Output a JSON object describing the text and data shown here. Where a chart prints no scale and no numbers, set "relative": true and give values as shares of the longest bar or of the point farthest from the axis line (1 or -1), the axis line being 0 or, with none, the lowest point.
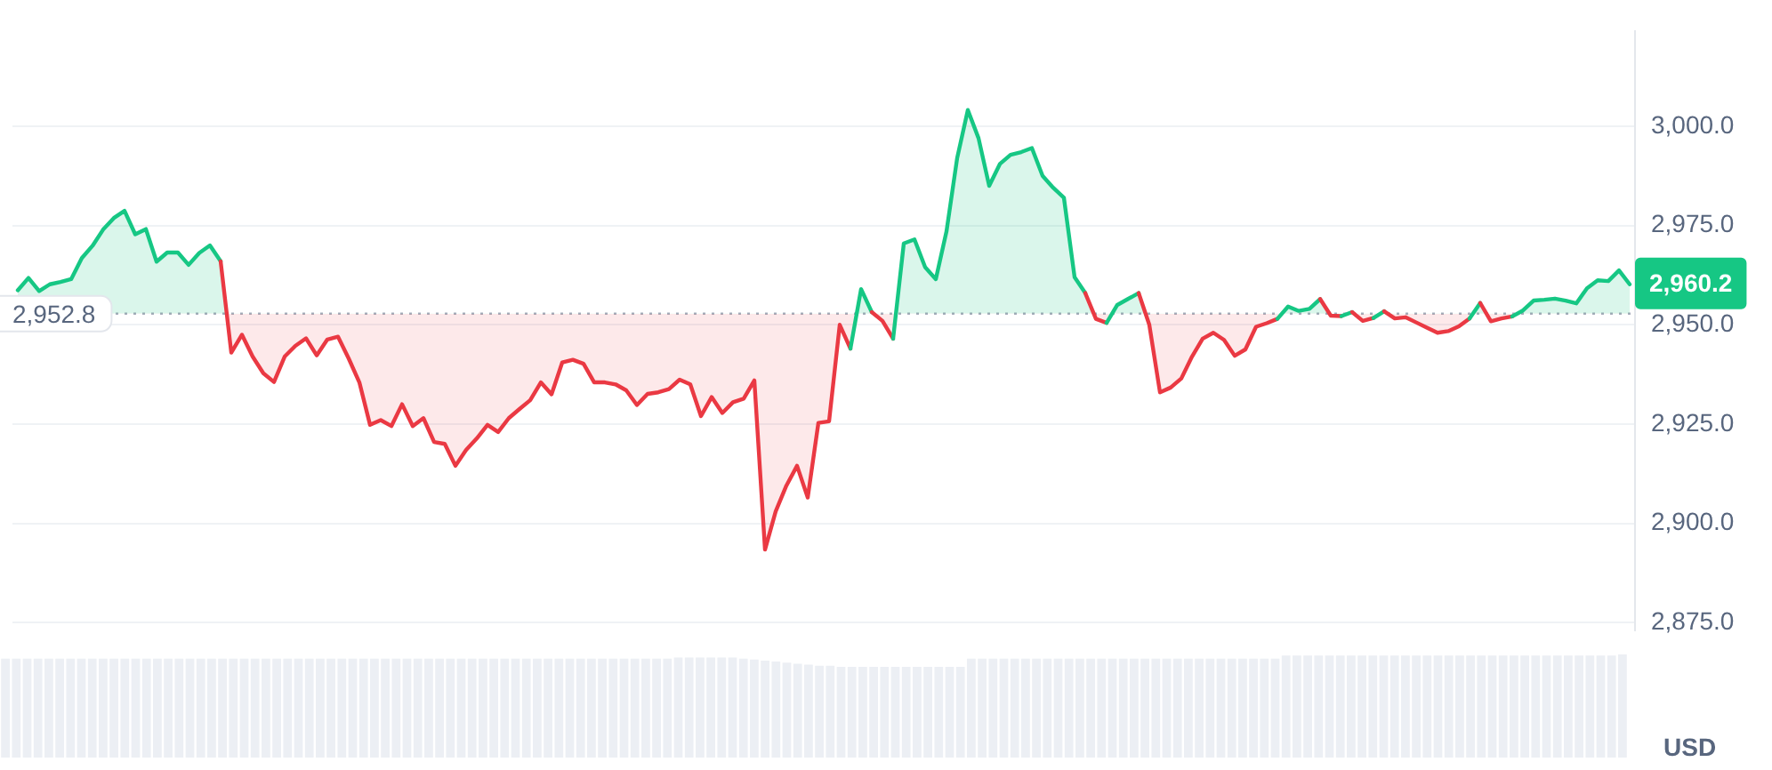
{
  "chart_data": [
    {
      "type": "area",
      "categories": [
        null,
        null,
        null,
        null,
        null,
        null,
        null,
        null,
        null,
        null,
        null,
        null,
        null,
        null,
        null,
        null,
        null,
        null,
        null,
        null,
        null,
        null,
        null,
        null,
        null,
        null,
        null,
        null,
        null,
        null,
        null,
        null,
        null,
        null,
        null,
        null,
        null,
        null,
        null,
        null,
        null,
        null,
        null,
        null,
        null,
        null,
        null,
        null,
        null,
        null,
        null,
        null,
        null,
        null,
        null,
        null,
        null,
        null,
        null,
        null,
        null,
        null,
        null,
        null,
        null,
        null,
        null,
        null,
        null,
        null,
        null,
        null,
        null,
        null,
        null,
        null,
        null,
        null,
        null,
        null,
        null,
        null,
        null,
        null,
        null,
        null,
        null,
        null,
        null,
        null,
        null,
        null,
        null,
        null,
        null,
        null,
        null,
        null,
        null,
        null,
        null,
        null,
        null,
        null,
        null,
        null,
        null,
        null,
        null,
        null,
        null,
        null,
        null,
        null,
        null,
        null,
        null,
        null,
        null,
        null,
        null,
        null,
        null,
        null,
        null,
        null,
        null,
        null,
        null,
        null,
        null,
        null,
        null,
        null,
        null,
        null,
        null,
        null,
        null,
        null,
        null,
        null,
        null,
        null,
        null,
        null,
        null,
        null,
        null,
        null,
        null,
        null
      ],
      "values": [
        2958.7,
        2961.8,
        2958.5,
        2960.2,
        2960.8,
        2961.5,
        2966.8,
        2969.9,
        2974.0,
        2976.9,
        2978.7,
        2972.8,
        2974.1,
        2965.9,
        2968.2,
        2968.2,
        2965.1,
        2968.1,
        2970.0,
        2966.0,
        2943.0,
        2947.5,
        2942.0,
        2937.8,
        2935.6,
        2942.0,
        2944.7,
        2946.6,
        2942.3,
        2946.3,
        2947.0,
        2941.5,
        2935.5,
        2924.8,
        2926.0,
        2924.5,
        2930.0,
        2924.5,
        2926.5,
        2920.5,
        2920.0,
        2914.5,
        2918.5,
        2921.4,
        2924.8,
        2923.0,
        2926.5,
        2928.8,
        2931.0,
        2935.5,
        2932.5,
        2940.5,
        2941.2,
        2940.2,
        2935.5,
        2935.5,
        2935.0,
        2933.5,
        2929.8,
        2932.6,
        2933.0,
        2933.8,
        2936.2,
        2935.0,
        2927.0,
        2931.8,
        2927.8,
        2930.5,
        2931.4,
        2936.0,
        2893.4,
        2903.0,
        2909.5,
        2914.5,
        2906.5,
        2925.3,
        2925.7,
        2950.0,
        2944.0,
        2959.0,
        2953.2,
        2951.0,
        2946.5,
        2970.5,
        2971.5,
        2964.5,
        2961.5,
        2973.5,
        2992.0,
        3004.1,
        2997.0,
        2985.0,
        2990.5,
        2992.8,
        2993.5,
        2994.5,
        2987.5,
        2984.5,
        2982.0,
        2962.0,
        2958.0,
        2951.5,
        2950.5,
        2955.0,
        2956.5,
        2958.0,
        2950.0,
        2933.0,
        2934.2,
        2936.5,
        2942.0,
        2946.5,
        2948.0,
        2946.2,
        2942.2,
        2943.8,
        2949.5,
        2950.4,
        2951.5,
        2954.6,
        2953.5,
        2954.0,
        2956.5,
        2952.3,
        2952.2,
        2953.2,
        2951.0,
        2951.7,
        2953.4,
        2951.6,
        2951.9,
        2950.6,
        2949.3,
        2948.0,
        2948.4,
        2949.6,
        2951.6,
        2955.5,
        2950.9,
        2951.6,
        2952.1,
        2953.6,
        2956.1,
        2956.3,
        2956.6,
        2956.1,
        2955.4,
        2959.2,
        2961.2,
        2961.0,
        2963.7,
        2960.2
      ],
      "colors": [
        "#16c784",
        "#16c784",
        "#16c784",
        "#16c784",
        "#16c784",
        "#16c784",
        "#16c784",
        "#16c784",
        "#16c784",
        "#16c784",
        "#16c784",
        "#16c784",
        "#16c784",
        "#16c784",
        "#16c784",
        "#16c784",
        "#16c784",
        "#16c784",
        "#16c784",
        "#16c784",
        "#ea3943",
        "#ea3943",
        "#ea3943",
        "#ea3943",
        "#ea3943",
        "#ea3943",
        "#ea3943",
        "#ea3943",
        "#ea3943",
        "#ea3943",
        "#ea3943",
        "#ea3943",
        "#ea3943",
        "#ea3943",
        "#ea3943",
        "#ea3943",
        "#ea3943",
        "#ea3943",
        "#ea3943",
        "#ea3943",
        "#ea3943",
        "#ea3943",
        "#ea3943",
        "#ea3943",
        "#ea3943",
        "#ea3943",
        "#ea3943",
        "#ea3943",
        "#ea3943",
        "#ea3943",
        "#ea3943",
        "#ea3943",
        "#ea3943",
        "#ea3943",
        "#ea3943",
        "#ea3943",
        "#ea3943",
        "#ea3943",
        "#ea3943",
        "#ea3943",
        "#ea3943",
        "#ea3943",
        "#ea3943",
        "#ea3943",
        "#ea3943",
        "#ea3943",
        "#ea3943",
        "#ea3943",
        "#ea3943",
        "#ea3943",
        "#ea3943",
        "#ea3943",
        "#ea3943",
        "#ea3943",
        "#ea3943",
        "#ea3943",
        "#ea3943",
        "#ea3943",
        "#ea3943",
        "#16c784",
        "#16c784",
        "#ea3943",
        "#ea3943",
        "#16c784",
        "#16c784",
        "#16c784",
        "#16c784",
        "#16c784",
        "#16c784",
        "#16c784",
        "#16c784",
        "#16c784",
        "#16c784",
        "#16c784",
        "#16c784",
        "#16c784",
        "#16c784",
        "#16c784",
        "#16c784",
        "#16c784",
        "#16c784",
        "#ea3943",
        "#ea3943",
        "#16c784",
        "#16c784",
        "#16c784",
        "#ea3943",
        "#ea3943",
        "#ea3943",
        "#ea3943",
        "#ea3943",
        "#ea3943",
        "#ea3943",
        "#ea3943",
        "#ea3943",
        "#ea3943",
        "#ea3943",
        "#ea3943",
        "#ea3943",
        "#16c784",
        "#16c784",
        "#16c784",
        "#16c784",
        "#ea3943",
        "#ea3943",
        "#16c784",
        "#ea3943",
        "#ea3943",
        "#16c784",
        "#ea3943",
        "#ea3943",
        "#ea3943",
        "#ea3943",
        "#ea3943",
        "#ea3943",
        "#ea3943",
        "#ea3943",
        "#16c784",
        "#ea3943",
        "#ea3943",
        "#ea3943",
        "#16c784",
        "#16c784",
        "#16c784",
        "#16c784",
        "#16c784",
        "#16c784",
        "#16c784",
        "#16c784",
        "#16c784",
        "#16c784",
        "#16c784"
      ],
      "ylabel": "USD",
      "ylim": [
        2873,
        3024
      ],
      "yticks": [
        {
          "value": 2875,
          "label": "2,875.0"
        },
        {
          "value": 2900,
          "label": "2,900.0"
        },
        {
          "value": 2925,
          "label": "2,925.0"
        },
        {
          "value": 2950,
          "label": "2,950.0"
        },
        {
          "value": 2975,
          "label": "2,975.0"
        },
        {
          "value": 3000,
          "label": "3,000.0"
        }
      ],
      "grid": "y",
      "tick_labels": "y",
      "ref_lines": [
        {
          "axis": "y",
          "value": 2952.8,
          "label": "2,952.8",
          "color": "#a7adbc",
          "line_style": "dotted"
        }
      ],
      "annotations": [
        "2,960.2"
      ]
    },
    {
      "type": "bar",
      "relative": true,
      "color": "#eceff4",
      "categories": [
        null,
        null,
        null,
        null,
        null,
        null,
        null,
        null,
        null,
        null,
        null,
        null,
        null,
        null,
        null,
        null,
        null,
        null,
        null,
        null,
        null,
        null,
        null,
        null,
        null,
        null,
        null,
        null,
        null,
        null,
        null,
        null,
        null,
        null,
        null,
        null,
        null,
        null,
        null,
        null,
        null,
        null,
        null,
        null,
        null,
        null,
        null,
        null,
        null,
        null,
        null,
        null,
        null,
        null,
        null,
        null,
        null,
        null,
        null,
        null,
        null,
        null,
        null,
        null,
        null,
        null,
        null,
        null,
        null,
        null,
        null,
        null,
        null,
        null,
        null,
        null,
        null,
        null,
        null,
        null,
        null,
        null,
        null,
        null,
        null,
        null,
        null,
        null,
        null,
        null,
        null,
        null,
        null,
        null,
        null,
        null,
        null,
        null,
        null,
        null,
        null,
        null,
        null,
        null,
        null,
        null,
        null,
        null,
        null,
        null,
        null,
        null,
        null,
        null,
        null,
        null,
        null,
        null,
        null,
        null,
        null,
        null,
        null,
        null,
        null,
        null,
        null,
        null,
        null,
        null,
        null,
        null,
        null,
        null,
        null,
        null,
        null,
        null,
        null,
        null,
        null,
        null,
        null,
        null,
        null,
        null,
        null,
        null,
        null,
        null
      ],
      "values": [
        0.96,
        0.96,
        0.96,
        0.96,
        0.96,
        0.96,
        0.96,
        0.96,
        0.96,
        0.96,
        0.96,
        0.96,
        0.96,
        0.96,
        0.96,
        0.96,
        0.96,
        0.96,
        0.96,
        0.96,
        0.96,
        0.96,
        0.96,
        0.96,
        0.96,
        0.96,
        0.96,
        0.96,
        0.96,
        0.96,
        0.96,
        0.96,
        0.96,
        0.96,
        0.96,
        0.96,
        0.96,
        0.96,
        0.96,
        0.96,
        0.96,
        0.96,
        0.96,
        0.96,
        0.96,
        0.96,
        0.96,
        0.96,
        0.96,
        0.96,
        0.96,
        0.96,
        0.96,
        0.96,
        0.96,
        0.96,
        0.96,
        0.96,
        0.96,
        0.96,
        0.96,
        0.96,
        0.97,
        0.97,
        0.97,
        0.97,
        0.97,
        0.97,
        0.96,
        0.95,
        0.94,
        0.93,
        0.92,
        0.91,
        0.9,
        0.89,
        0.89,
        0.88,
        0.88,
        0.88,
        0.88,
        0.88,
        0.88,
        0.88,
        0.88,
        0.88,
        0.88,
        0.88,
        0.88,
        0.96,
        0.96,
        0.96,
        0.96,
        0.96,
        0.96,
        0.96,
        0.96,
        0.96,
        0.96,
        0.96,
        0.96,
        0.96,
        0.96,
        0.96,
        0.96,
        0.96,
        0.96,
        0.96,
        0.96,
        0.96,
        0.96,
        0.96,
        0.96,
        0.96,
        0.96,
        0.96,
        0.96,
        0.96,
        0.99,
        0.99,
        0.99,
        0.99,
        0.99,
        0.99,
        0.99,
        0.99,
        0.99,
        0.99,
        0.99,
        0.99,
        0.99,
        0.99,
        0.99,
        0.99,
        0.99,
        0.99,
        0.99,
        0.99,
        0.99,
        0.99,
        0.99,
        0.99,
        0.99,
        0.99,
        0.99,
        0.99,
        0.99,
        0.99,
        0.99,
        1.0
      ]
    }
  ]
}
